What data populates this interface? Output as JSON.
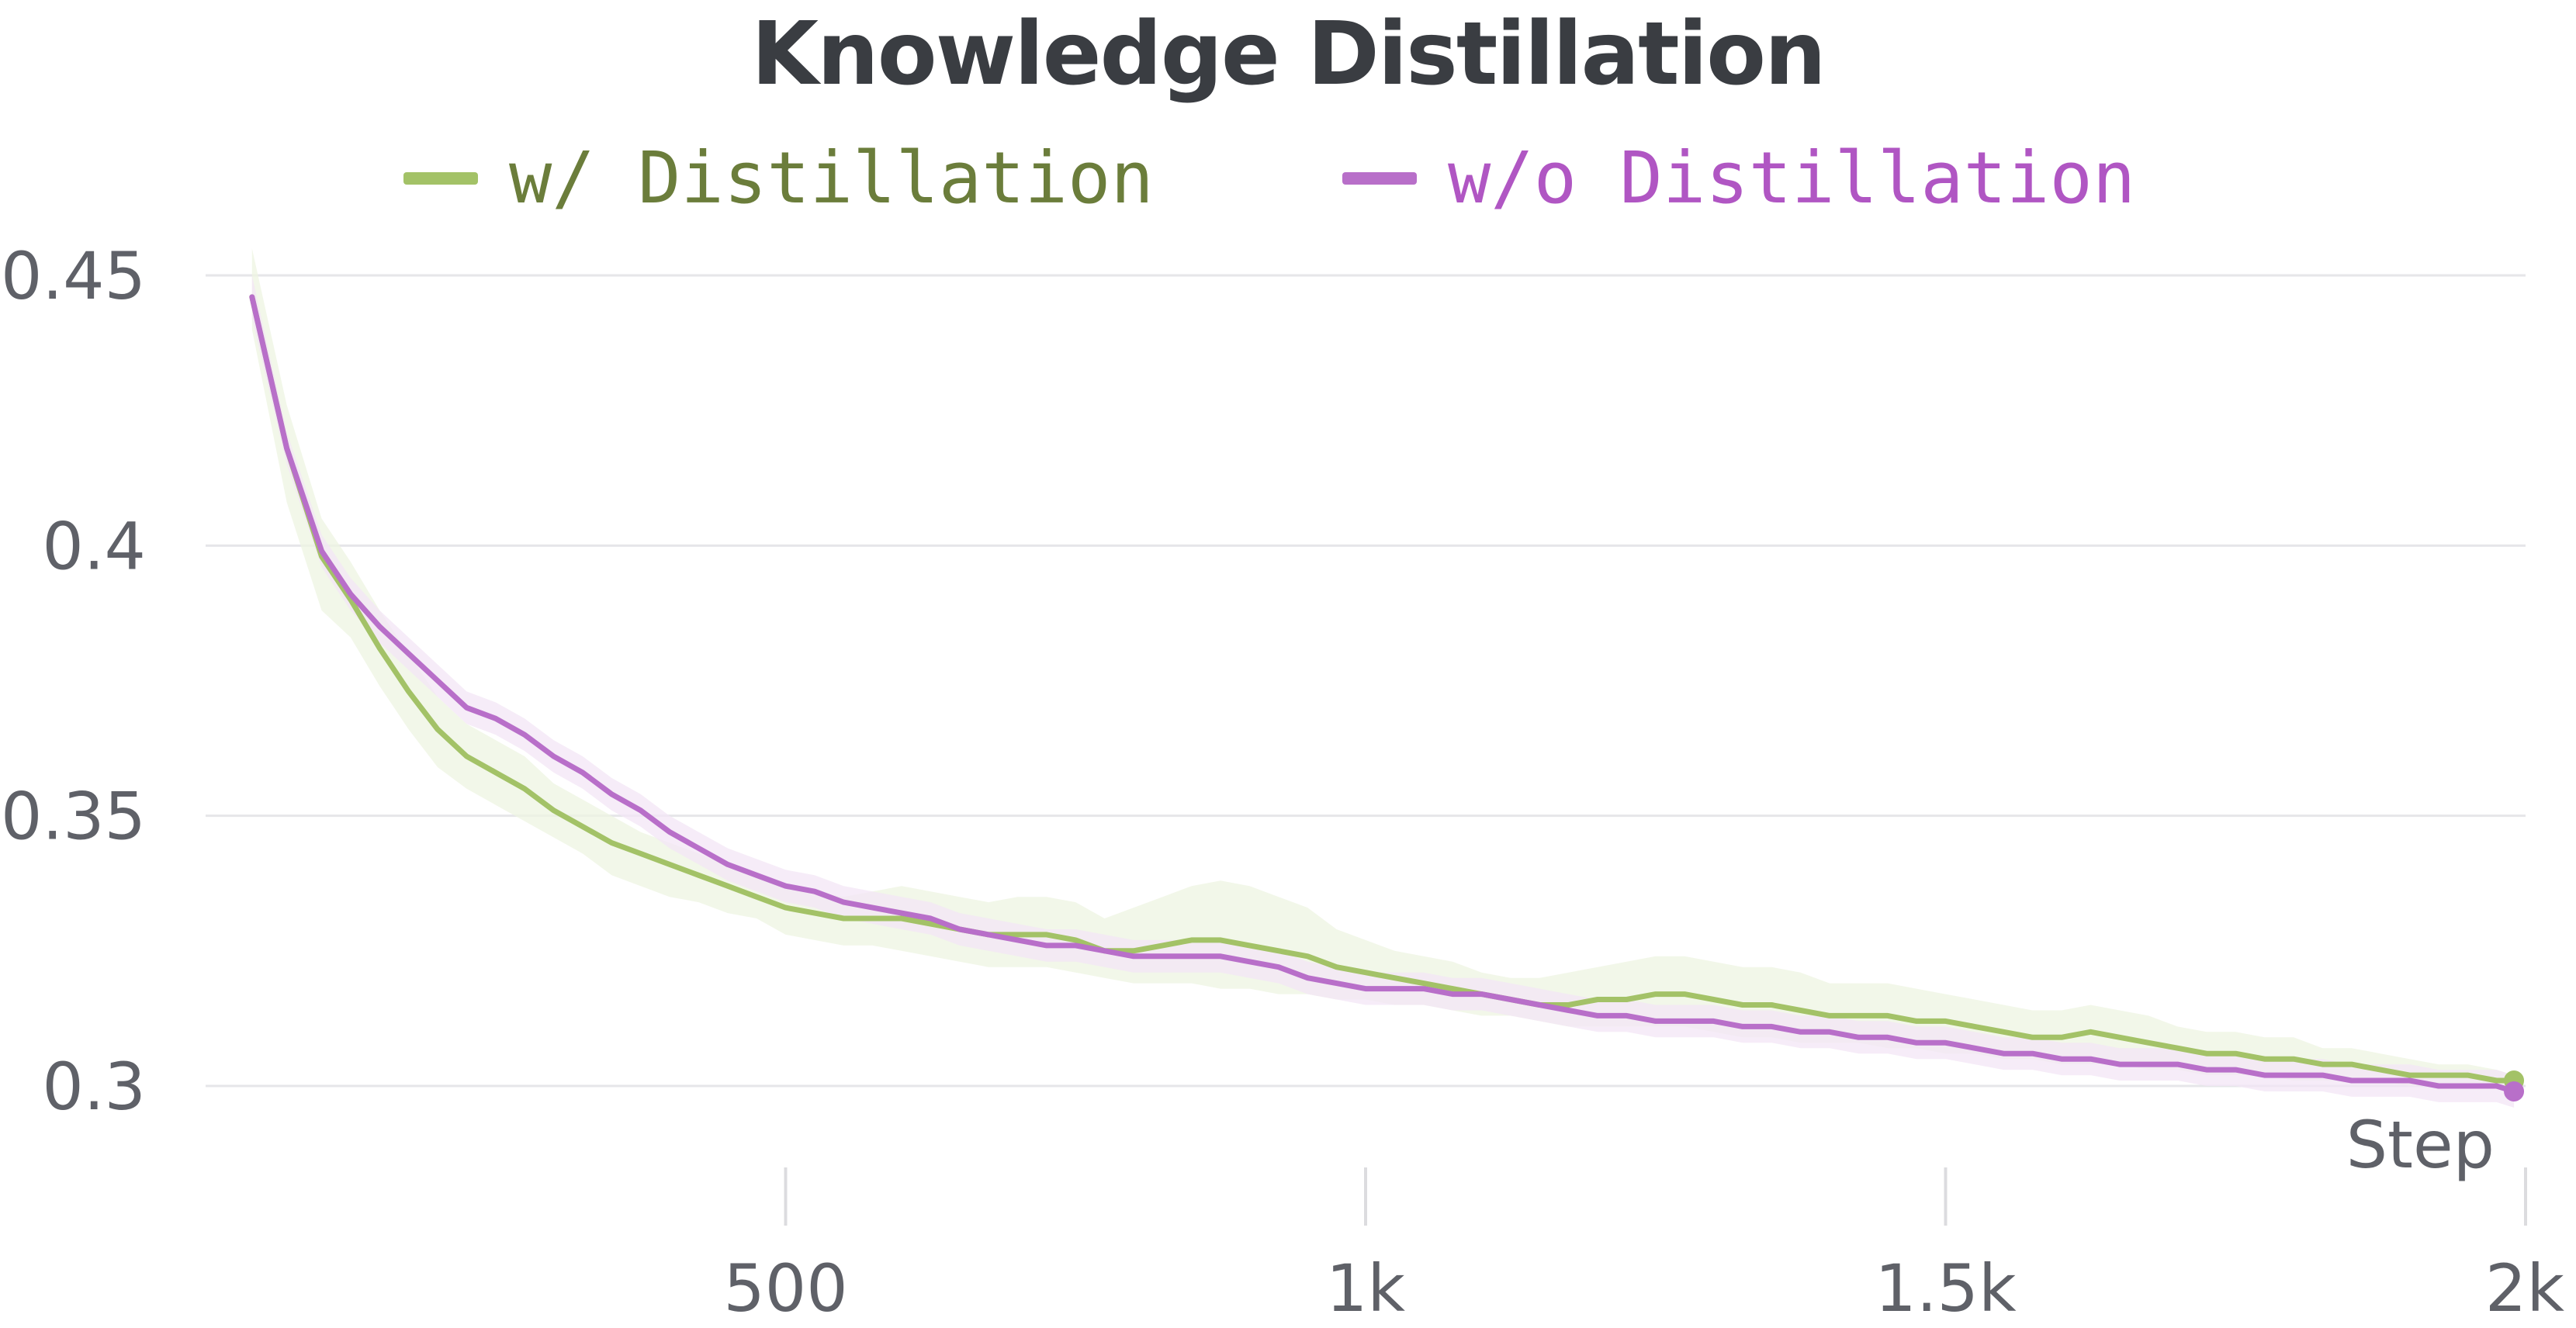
{
  "chart_data": {
    "type": "line",
    "title": "Knowledge Distillation",
    "xlabel": "Step",
    "ylabel": "",
    "xlim": [
      0,
      2000
    ],
    "ylim": [
      0.28,
      0.455
    ],
    "x_ticks": [
      {
        "value": 500,
        "label": "500"
      },
      {
        "value": 1000,
        "label": "1k"
      },
      {
        "value": 1500,
        "label": "1.5k"
      },
      {
        "value": 2000,
        "label": "2k"
      }
    ],
    "y_ticks": [
      {
        "value": 0.45,
        "label": "0.45"
      },
      {
        "value": 0.4,
        "label": "0.4"
      },
      {
        "value": 0.35,
        "label": "0.35"
      },
      {
        "value": 0.3,
        "label": "0.3"
      }
    ],
    "grid": "horizontal",
    "legend_position": "top",
    "series": [
      {
        "name": "w/ Distillation",
        "color": "#a3c267",
        "label_color": "#6b7d3b",
        "band_color": "#eef4e2",
        "x": [
          40,
          70,
          100,
          125,
          150,
          175,
          200,
          225,
          250,
          275,
          300,
          325,
          350,
          375,
          400,
          425,
          450,
          475,
          500,
          525,
          550,
          575,
          600,
          625,
          650,
          675,
          700,
          725,
          750,
          775,
          800,
          825,
          850,
          875,
          900,
          925,
          950,
          975,
          1000,
          1025,
          1050,
          1075,
          1100,
          1125,
          1150,
          1175,
          1200,
          1225,
          1250,
          1275,
          1300,
          1325,
          1350,
          1375,
          1400,
          1425,
          1450,
          1475,
          1500,
          1525,
          1550,
          1575,
          1600,
          1625,
          1650,
          1675,
          1700,
          1725,
          1750,
          1775,
          1800,
          1825,
          1850,
          1875,
          1900,
          1925,
          1950,
          1975,
          1990
        ],
        "y": [
          0.446,
          0.418,
          0.398,
          0.39,
          0.381,
          0.373,
          0.366,
          0.361,
          0.358,
          0.355,
          0.351,
          0.348,
          0.345,
          0.343,
          0.341,
          0.339,
          0.337,
          0.335,
          0.333,
          0.332,
          0.331,
          0.331,
          0.331,
          0.33,
          0.329,
          0.328,
          0.328,
          0.328,
          0.327,
          0.325,
          0.325,
          0.326,
          0.327,
          0.327,
          0.326,
          0.325,
          0.324,
          0.322,
          0.321,
          0.32,
          0.319,
          0.318,
          0.317,
          0.316,
          0.315,
          0.315,
          0.316,
          0.316,
          0.317,
          0.317,
          0.316,
          0.315,
          0.315,
          0.314,
          0.313,
          0.313,
          0.313,
          0.312,
          0.312,
          0.311,
          0.31,
          0.309,
          0.309,
          0.31,
          0.309,
          0.308,
          0.307,
          0.306,
          0.306,
          0.305,
          0.305,
          0.304,
          0.304,
          0.303,
          0.302,
          0.302,
          0.302,
          0.301,
          0.301
        ],
        "band_upper": [
          0.455,
          0.426,
          0.405,
          0.397,
          0.388,
          0.38,
          0.372,
          0.367,
          0.364,
          0.361,
          0.356,
          0.353,
          0.35,
          0.347,
          0.345,
          0.343,
          0.341,
          0.339,
          0.337,
          0.336,
          0.335,
          0.336,
          0.337,
          0.336,
          0.335,
          0.334,
          0.335,
          0.335,
          0.334,
          0.331,
          0.333,
          0.335,
          0.337,
          0.338,
          0.337,
          0.335,
          0.333,
          0.329,
          0.327,
          0.325,
          0.324,
          0.323,
          0.321,
          0.32,
          0.32,
          0.321,
          0.322,
          0.323,
          0.324,
          0.324,
          0.323,
          0.322,
          0.322,
          0.321,
          0.319,
          0.319,
          0.319,
          0.318,
          0.317,
          0.316,
          0.315,
          0.314,
          0.314,
          0.315,
          0.314,
          0.313,
          0.311,
          0.31,
          0.31,
          0.309,
          0.309,
          0.307,
          0.307,
          0.306,
          0.305,
          0.304,
          0.304,
          0.303,
          0.302
        ],
        "band_lower": [
          0.44,
          0.408,
          0.388,
          0.383,
          0.374,
          0.366,
          0.359,
          0.355,
          0.352,
          0.349,
          0.346,
          0.343,
          0.339,
          0.337,
          0.335,
          0.334,
          0.332,
          0.331,
          0.328,
          0.327,
          0.326,
          0.326,
          0.325,
          0.324,
          0.323,
          0.322,
          0.322,
          0.322,
          0.321,
          0.32,
          0.319,
          0.319,
          0.319,
          0.318,
          0.318,
          0.317,
          0.317,
          0.316,
          0.316,
          0.315,
          0.315,
          0.314,
          0.313,
          0.313,
          0.312,
          0.311,
          0.311,
          0.311,
          0.311,
          0.311,
          0.31,
          0.309,
          0.309,
          0.308,
          0.308,
          0.308,
          0.307,
          0.307,
          0.306,
          0.306,
          0.305,
          0.305,
          0.304,
          0.304,
          0.304,
          0.303,
          0.303,
          0.302,
          0.302,
          0.302,
          0.301,
          0.301,
          0.301,
          0.301,
          0.3,
          0.3,
          0.3,
          0.3,
          0.3
        ]
      },
      {
        "name": "w/o Distillation",
        "color": "#b86fc9",
        "label_color": "#b056c3",
        "band_color": "#f3e6f5",
        "x": [
          40,
          70,
          100,
          125,
          150,
          175,
          200,
          225,
          250,
          275,
          300,
          325,
          350,
          375,
          400,
          425,
          450,
          475,
          500,
          525,
          550,
          575,
          600,
          625,
          650,
          675,
          700,
          725,
          750,
          775,
          800,
          825,
          850,
          875,
          900,
          925,
          950,
          975,
          1000,
          1025,
          1050,
          1075,
          1100,
          1125,
          1150,
          1175,
          1200,
          1225,
          1250,
          1275,
          1300,
          1325,
          1350,
          1375,
          1400,
          1425,
          1450,
          1475,
          1500,
          1525,
          1550,
          1575,
          1600,
          1625,
          1650,
          1675,
          1700,
          1725,
          1750,
          1775,
          1800,
          1825,
          1850,
          1875,
          1900,
          1925,
          1950,
          1975,
          1990
        ],
        "y": [
          0.446,
          0.418,
          0.399,
          0.391,
          0.385,
          0.38,
          0.375,
          0.37,
          0.368,
          0.365,
          0.361,
          0.358,
          0.354,
          0.351,
          0.347,
          0.344,
          0.341,
          0.339,
          0.337,
          0.336,
          0.334,
          0.333,
          0.332,
          0.331,
          0.329,
          0.328,
          0.327,
          0.326,
          0.326,
          0.325,
          0.324,
          0.324,
          0.324,
          0.324,
          0.323,
          0.322,
          0.32,
          0.319,
          0.318,
          0.318,
          0.318,
          0.317,
          0.317,
          0.316,
          0.315,
          0.314,
          0.313,
          0.313,
          0.312,
          0.312,
          0.312,
          0.311,
          0.311,
          0.31,
          0.31,
          0.309,
          0.309,
          0.308,
          0.308,
          0.307,
          0.306,
          0.306,
          0.305,
          0.305,
          0.304,
          0.304,
          0.304,
          0.303,
          0.303,
          0.302,
          0.302,
          0.302,
          0.301,
          0.301,
          0.301,
          0.3,
          0.3,
          0.3,
          0.299
        ],
        "band_upper": [
          0.45,
          0.421,
          0.402,
          0.394,
          0.388,
          0.383,
          0.378,
          0.373,
          0.371,
          0.368,
          0.364,
          0.361,
          0.357,
          0.354,
          0.35,
          0.347,
          0.344,
          0.342,
          0.34,
          0.339,
          0.337,
          0.336,
          0.335,
          0.334,
          0.332,
          0.331,
          0.33,
          0.329,
          0.329,
          0.328,
          0.327,
          0.327,
          0.327,
          0.327,
          0.326,
          0.325,
          0.323,
          0.322,
          0.321,
          0.321,
          0.321,
          0.32,
          0.32,
          0.319,
          0.318,
          0.317,
          0.316,
          0.316,
          0.315,
          0.315,
          0.315,
          0.314,
          0.314,
          0.313,
          0.313,
          0.312,
          0.312,
          0.311,
          0.311,
          0.31,
          0.309,
          0.309,
          0.308,
          0.308,
          0.307,
          0.307,
          0.307,
          0.306,
          0.306,
          0.305,
          0.305,
          0.305,
          0.304,
          0.304,
          0.304,
          0.303,
          0.303,
          0.303,
          0.302
        ],
        "band_lower": [
          0.442,
          0.415,
          0.396,
          0.388,
          0.382,
          0.377,
          0.372,
          0.367,
          0.365,
          0.362,
          0.358,
          0.355,
          0.351,
          0.348,
          0.344,
          0.341,
          0.338,
          0.336,
          0.334,
          0.333,
          0.331,
          0.33,
          0.329,
          0.328,
          0.326,
          0.325,
          0.324,
          0.323,
          0.323,
          0.322,
          0.321,
          0.321,
          0.321,
          0.321,
          0.32,
          0.319,
          0.317,
          0.316,
          0.315,
          0.315,
          0.315,
          0.314,
          0.314,
          0.313,
          0.312,
          0.311,
          0.31,
          0.31,
          0.309,
          0.309,
          0.309,
          0.308,
          0.308,
          0.307,
          0.307,
          0.306,
          0.306,
          0.305,
          0.305,
          0.304,
          0.303,
          0.303,
          0.302,
          0.302,
          0.301,
          0.301,
          0.301,
          0.3,
          0.3,
          0.299,
          0.299,
          0.299,
          0.298,
          0.298,
          0.298,
          0.297,
          0.297,
          0.297,
          0.296
        ]
      }
    ]
  }
}
